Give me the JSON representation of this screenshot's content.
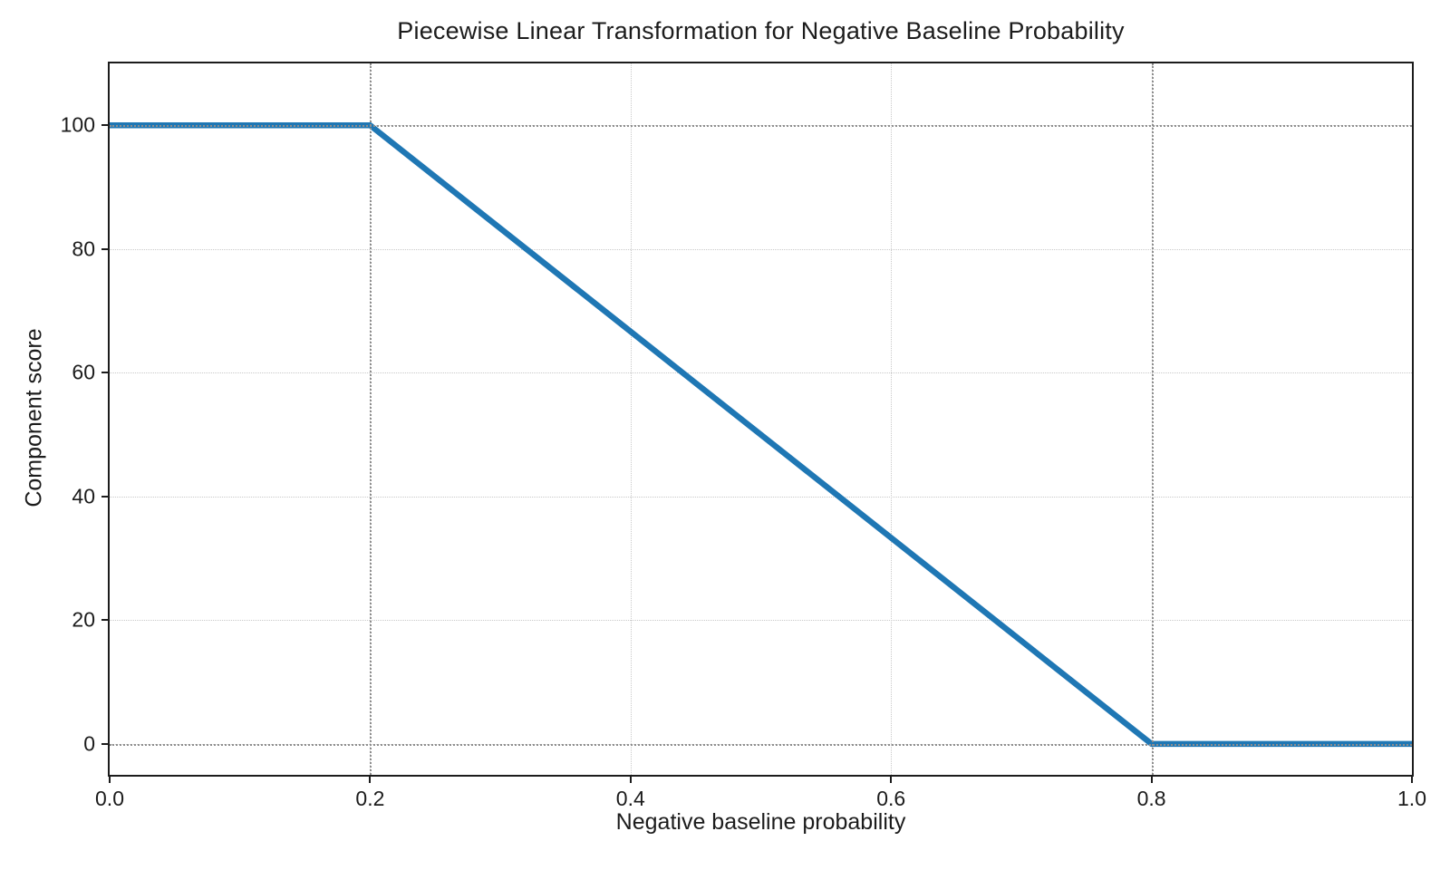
{
  "chart_data": {
    "type": "line",
    "title": "Piecewise Linear Transformation for Negative Baseline Probability",
    "xlabel": "Negative baseline probability",
    "ylabel": "Component score",
    "xlim": [
      0.0,
      1.0
    ],
    "ylim": [
      -5,
      110
    ],
    "xticks": {
      "values": [
        0.0,
        0.2,
        0.4,
        0.6,
        0.8,
        1.0
      ],
      "labels": [
        "0.0",
        "0.2",
        "0.4",
        "0.6",
        "0.8",
        "1.0"
      ]
    },
    "yticks": {
      "values": [
        0,
        20,
        40,
        60,
        80,
        100
      ],
      "labels": [
        "0",
        "20",
        "40",
        "60",
        "80",
        "100"
      ]
    },
    "series": [
      {
        "points": [
          [
            0.0,
            100
          ],
          [
            0.2,
            100
          ],
          [
            0.8,
            0
          ],
          [
            1.0,
            0
          ]
        ],
        "color": "#1f77b4",
        "line_width": 6.5
      }
    ],
    "grid": {
      "show": true,
      "style": "dotted",
      "color": "#c9c9c9"
    },
    "reference_lines": {
      "style": "dotted",
      "color": "#8e8e8e",
      "x": [
        0.2,
        0.8
      ],
      "y": [
        0,
        100
      ]
    },
    "legend": {
      "show": false
    },
    "spine_color": "#1c1c1c",
    "background": "#ffffff"
  }
}
